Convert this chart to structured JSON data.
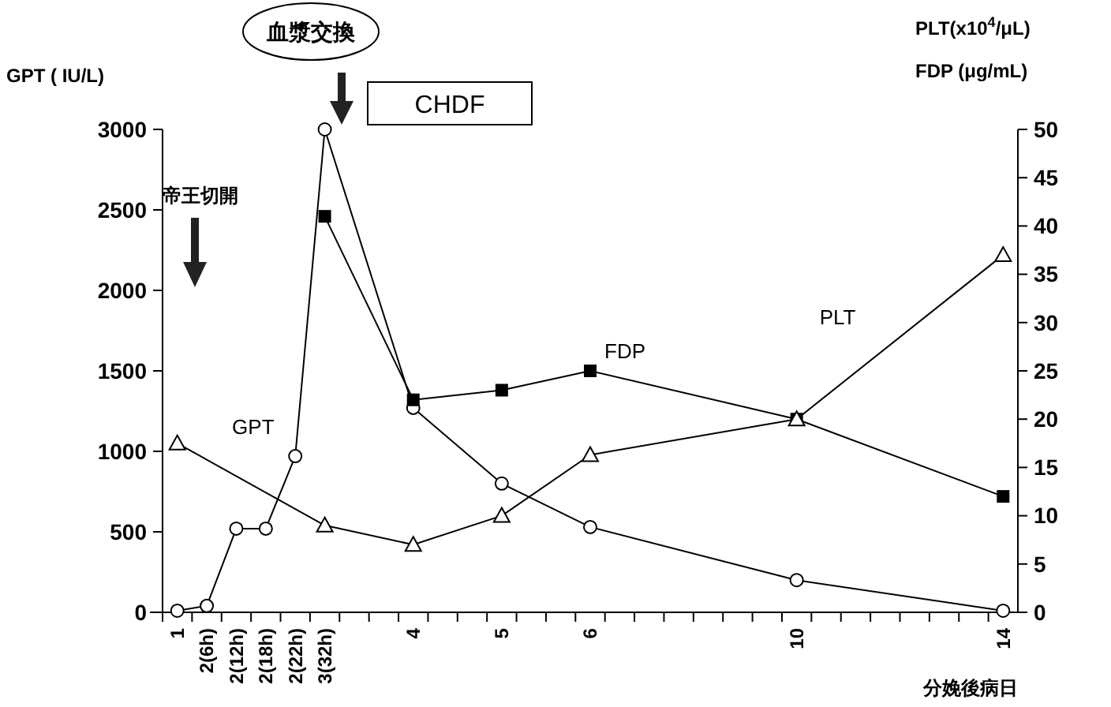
{
  "chart_data": {
    "type": "line",
    "xlabel": "分娩後病日",
    "ylabel": "GPT ( IU/L)",
    "y2label": "PLT(x10$^{4}$/μL)\nFDP (μg/mL)",
    "categories": [
      "1",
      "2(6h)",
      "2(12h)",
      "2(18h)",
      "2(22h)",
      "3(32h)",
      null,
      null,
      "4",
      null,
      null,
      "5",
      null,
      null,
      "6",
      null,
      null,
      null,
      null,
      null,
      null,
      "10",
      null,
      null,
      null,
      null,
      null,
      null,
      "14"
    ],
    "ylim": [
      0,
      3000
    ],
    "yticks": [
      0,
      500,
      1000,
      1500,
      2000,
      2500,
      3000
    ],
    "y2lim": [
      0,
      50
    ],
    "y2ticks": [
      0,
      5,
      10,
      15,
      20,
      25,
      30,
      35,
      40,
      45,
      50
    ],
    "series": [
      {
        "name": "GPT",
        "color": "#000000",
        "marker": "circle",
        "values": [
          10,
          40,
          520,
          520,
          970,
          3000,
          null,
          null,
          1270,
          null,
          null,
          800,
          null,
          null,
          530,
          null,
          null,
          null,
          null,
          null,
          null,
          200,
          null,
          null,
          null,
          null,
          null,
          null,
          10
        ]
      },
      {
        "name": "FDP",
        "color": "#000000",
        "marker": "square",
        "axis": "y2",
        "values": [
          null,
          null,
          null,
          null,
          null,
          41,
          null,
          null,
          22,
          null,
          null,
          23,
          null,
          null,
          25,
          null,
          null,
          null,
          null,
          null,
          null,
          20,
          null,
          null,
          null,
          null,
          null,
          null,
          12
        ]
      },
      {
        "name": "PLT",
        "color": "#000000",
        "marker": "triangle",
        "axis": "y2",
        "values": [
          17.5,
          null,
          null,
          null,
          null,
          9,
          null,
          null,
          7,
          null,
          null,
          10,
          null,
          null,
          16.3,
          null,
          null,
          null,
          null,
          null,
          null,
          20,
          null,
          null,
          null,
          null,
          null,
          null,
          37
        ]
      }
    ],
    "annotations": [
      "血漿交換",
      "CHDF",
      "帝王切開"
    ],
    "grid": false
  }
}
